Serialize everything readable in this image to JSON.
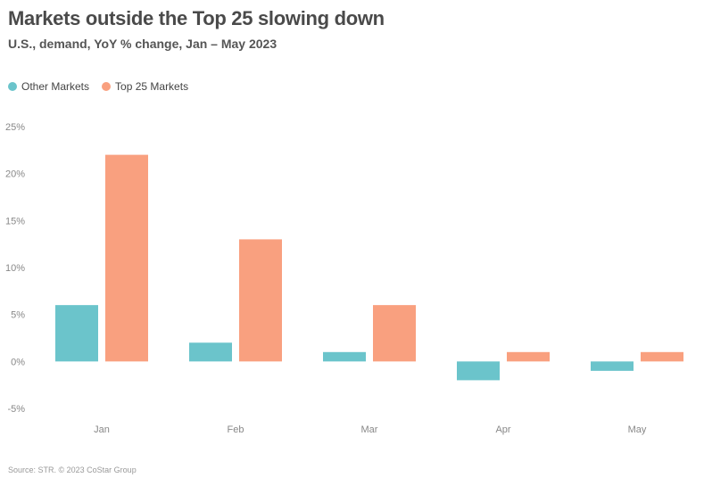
{
  "title": "Markets outside the Top 25 slowing down",
  "subtitle": "U.S., demand, YoY % change, Jan – May 2023",
  "source": "Source: STR. © 2023 CoStar Group",
  "colors": {
    "other": "#6bc4cb",
    "top25": "#f9a07f"
  },
  "chart_data": {
    "type": "bar",
    "categories": [
      "Jan",
      "Feb",
      "Mar",
      "Apr",
      "May"
    ],
    "series": [
      {
        "name": "Other Markets",
        "values": [
          6,
          2,
          1,
          -2,
          -1
        ]
      },
      {
        "name": "Top 25 Markets",
        "values": [
          22,
          13,
          6,
          1,
          1
        ]
      }
    ],
    "yticks": [
      "25%",
      "20%",
      "15%",
      "10%",
      "5%",
      "0%",
      "-5%"
    ],
    "ylim": [
      -5,
      25
    ],
    "legend_position": "top-left",
    "grid": false
  }
}
